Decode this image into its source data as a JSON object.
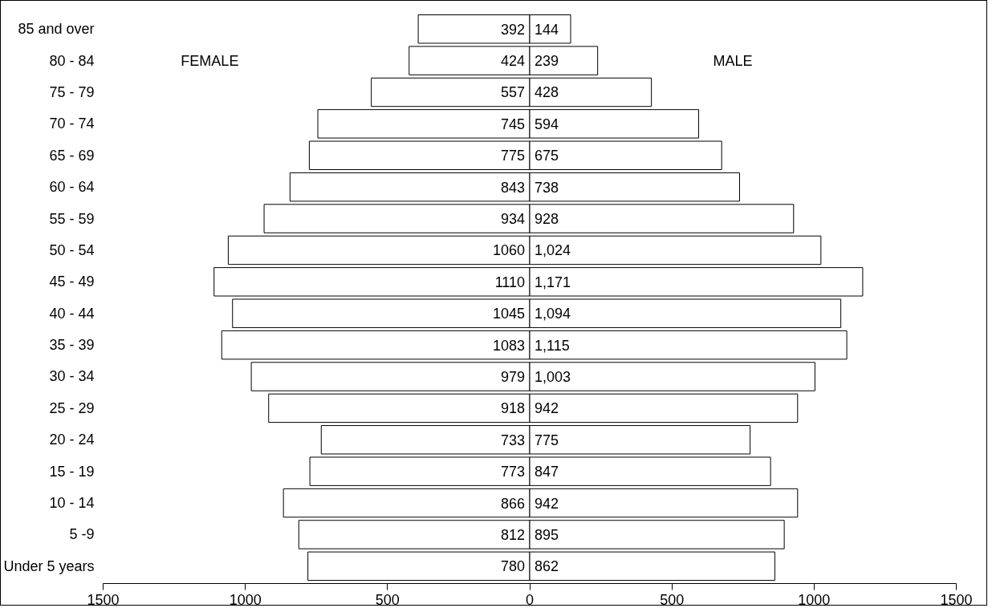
{
  "chart_data": {
    "type": "bar",
    "orientation": "horizontal",
    "categories": [
      "85 and over",
      "80 - 84",
      "75 - 79",
      "70 - 74",
      "65 - 69",
      "60 - 64",
      "55 - 59",
      "50 - 54",
      "45 - 49",
      "40 - 44",
      "35 - 39",
      "30 - 34",
      "25 - 29",
      "20 - 24",
      "15 - 19",
      "10 - 14",
      "5 -9",
      "Under 5 years"
    ],
    "xlim": [
      -1500,
      1500
    ],
    "xticks": [
      {
        "value": -1500,
        "label": "1500"
      },
      {
        "value": -1000,
        "label": "1000"
      },
      {
        "value": -500,
        "label": "500"
      },
      0,
      500,
      1000,
      1500
    ],
    "annotations": [
      "FEMALE",
      "MALE"
    ],
    "series": [
      {
        "color": "#ffffff",
        "base": [
          -392,
          -424,
          -557,
          -745,
          -775,
          -843,
          -934,
          -1060,
          -1110,
          -1045,
          -1083,
          -979,
          -918,
          -733,
          -773,
          -866,
          -812,
          -780
        ],
        "values": [
          392,
          424,
          557,
          745,
          775,
          843,
          934,
          1060,
          1110,
          1045,
          1083,
          979,
          918,
          733,
          773,
          866,
          812,
          780
        ],
        "data_labels": true
      },
      {
        "color": "#ffffff",
        "values": [
          144,
          239,
          428,
          594,
          675,
          738,
          928,
          1024,
          1171,
          1094,
          1115,
          1003,
          942,
          775,
          847,
          942,
          895,
          862
        ],
        "value_labels": [
          "144",
          "239",
          "428",
          "594",
          "675",
          "738",
          "928",
          "1,024",
          "1,171",
          "1,094",
          "1,115",
          "1,003",
          "942",
          "775",
          "847",
          "942",
          "895",
          "862"
        ]
      }
    ]
  }
}
